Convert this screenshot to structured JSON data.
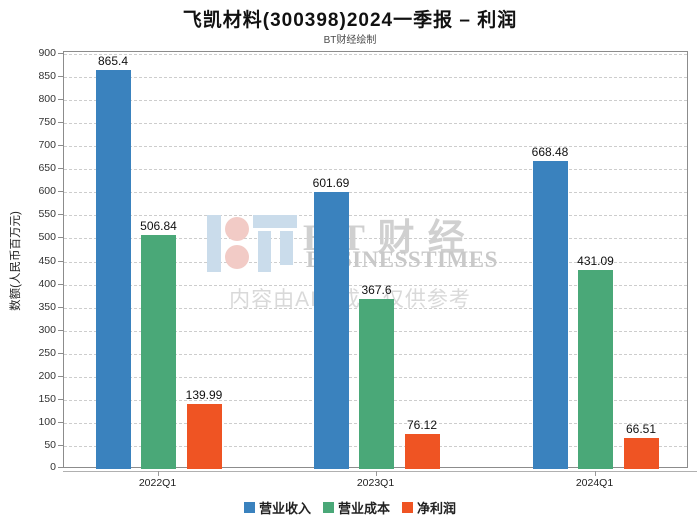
{
  "title": "飞凯材料(300398)2024一季报 – 利润",
  "subtitle": "BT财经绘制",
  "watermark": {
    "brand_cn": "B T 财 经",
    "brand_en": "BUSINESSTIMES",
    "disclaimer": "内容由AI生成，仅供参考",
    "logo_blue": "#cadceb",
    "logo_pink": "#f2cbc6"
  },
  "chart_data": {
    "type": "bar",
    "categories": [
      "2022Q1",
      "2023Q1",
      "2024Q1"
    ],
    "series": [
      {
        "name": "营业收入",
        "key": "revenue",
        "color": "#3a82be",
        "values": [
          865.4,
          601.69,
          668.48
        ]
      },
      {
        "name": "营业成本",
        "key": "cost",
        "color": "#4aa878",
        "values": [
          506.84,
          367.6,
          431.09
        ]
      },
      {
        "name": "净利润",
        "key": "net-profit",
        "color": "#ef5423",
        "values": [
          139.99,
          76.12,
          66.51
        ]
      }
    ],
    "ylabel": "数额(人民币百万元)",
    "xlabel": "",
    "ylim": [
      0,
      900
    ],
    "ytick_step": 50,
    "grid": true,
    "legend_position": "bottom"
  }
}
